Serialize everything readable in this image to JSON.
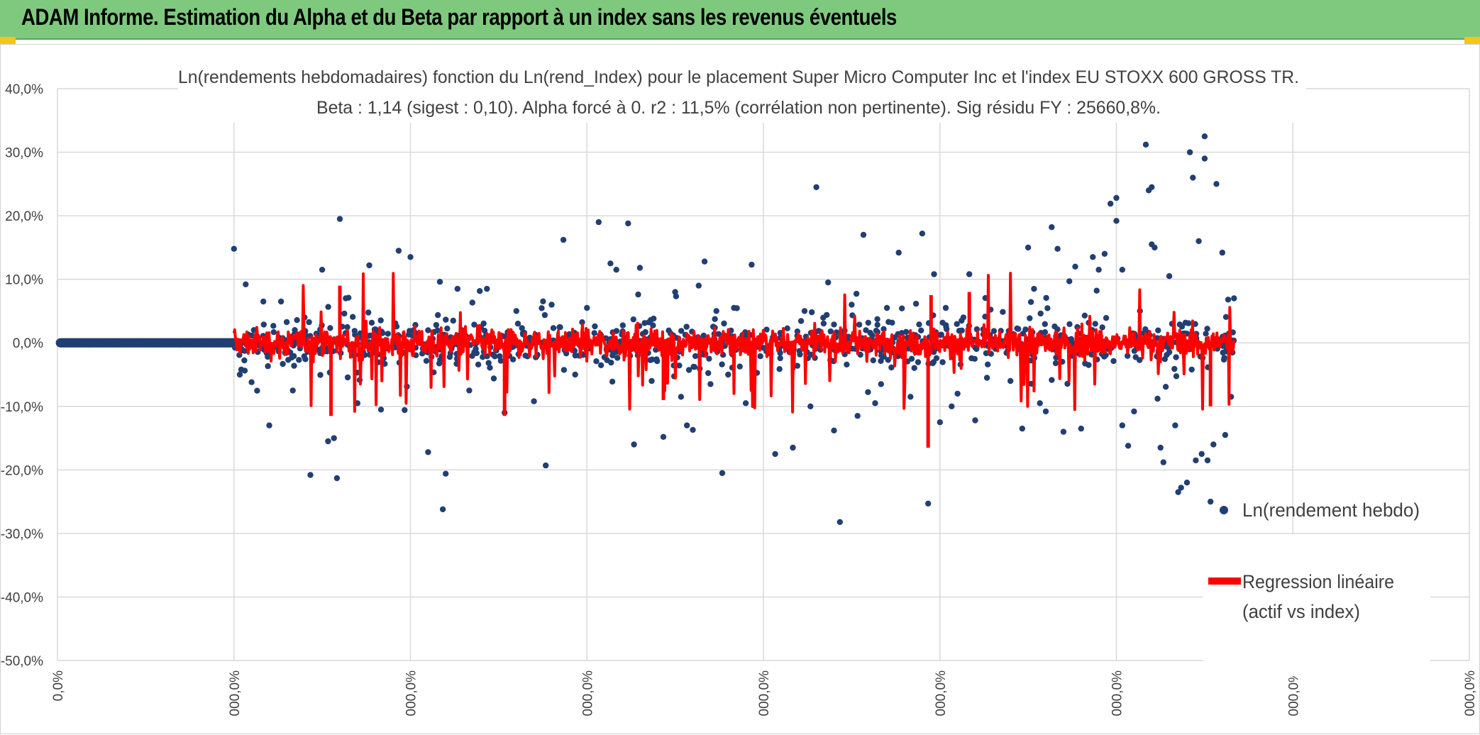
{
  "header": {
    "title": "ADAM Informe. Estimation du Alpha et du Beta par rapport à un index sans les revenus éventuels",
    "colors": {
      "banner": "#7fc97f",
      "corner": "#f5c518"
    }
  },
  "chart_data": {
    "type": "scatter",
    "title": "Ln(rendements hebdomadaires) fonction du Ln(rend_Index) pour le placement Super Micro Computer Inc et l'index EU STOXX 600 GROSS TR.",
    "subtitle": "Beta : 1,14 (sigest : 0,10). Alpha forcé à 0. r2 : 11,5% (corrélation non pertinente). Sig résidu FY : 25660,8%.",
    "ylim": [
      -50,
      40
    ],
    "y_tick_labels": [
      "40,0%",
      "30,0%",
      "20,0%",
      "10,0%",
      "0,0%",
      "-10,0%",
      "-20,0%",
      "-30,0%",
      "-40,0%",
      "-50,0%"
    ],
    "x_tick_labels": [
      "0,0%",
      "000,0%",
      "000,0%",
      "000,0%",
      "000,0%",
      "000,0%",
      "000,0%",
      "000,0%",
      "000,0%"
    ],
    "legend": {
      "position": "bottom-right",
      "scatter_label": "Ln(rendement hebdo)",
      "regression_label_line1": "Regression linéaire",
      "regression_label_line2": "(actif vs index)"
    },
    "colors": {
      "points": "#213f72",
      "regression": "#ff0000",
      "grid": "#d9d9d9"
    },
    "series": [
      {
        "name": "Ln(rendement hebdo)",
        "points": [
          [
            3.0,
            14.8
          ],
          [
            3.1,
            -5.0
          ],
          [
            3.2,
            9.2
          ],
          [
            3.3,
            -6.2
          ],
          [
            3.5,
            6.5
          ],
          [
            3.6,
            -13.0
          ],
          [
            3.8,
            6.5
          ],
          [
            4.0,
            -7.5
          ],
          [
            4.2,
            4.0
          ],
          [
            4.3,
            -20.8
          ],
          [
            4.5,
            11.5
          ],
          [
            4.6,
            -15.5
          ],
          [
            4.7,
            -15.0
          ],
          [
            4.75,
            -21.3
          ],
          [
            4.8,
            19.5
          ],
          [
            4.9,
            7.0
          ],
          [
            5.1,
            -9.5
          ],
          [
            5.3,
            12.2
          ],
          [
            5.5,
            -10.5
          ],
          [
            5.8,
            14.5
          ],
          [
            6.0,
            13.5
          ],
          [
            6.3,
            -17.2
          ],
          [
            6.5,
            9.6
          ],
          [
            6.55,
            -26.2
          ],
          [
            6.6,
            -20.6
          ],
          [
            6.8,
            8.5
          ],
          [
            7.0,
            -7.5
          ],
          [
            7.3,
            8.5
          ],
          [
            7.6,
            -11.0
          ],
          [
            7.8,
            5.0
          ],
          [
            8.1,
            -9.2
          ],
          [
            8.3,
            -19.3
          ],
          [
            8.4,
            6.0
          ],
          [
            8.6,
            16.2
          ],
          [
            8.8,
            -5.0
          ],
          [
            9.0,
            5.5
          ],
          [
            9.2,
            19.0
          ],
          [
            9.4,
            12.5
          ],
          [
            9.5,
            11.5
          ],
          [
            9.7,
            18.8
          ],
          [
            9.8,
            -16.0
          ],
          [
            9.9,
            11.8
          ],
          [
            10.1,
            -6.0
          ],
          [
            10.3,
            -14.8
          ],
          [
            10.5,
            8.0
          ],
          [
            10.6,
            -8.5
          ],
          [
            10.7,
            -13.0
          ],
          [
            10.8,
            -13.7
          ],
          [
            10.9,
            9.0
          ],
          [
            11.0,
            12.8
          ],
          [
            11.1,
            -6.5
          ],
          [
            11.2,
            5.0
          ],
          [
            11.3,
            -20.5
          ],
          [
            11.5,
            5.5
          ],
          [
            11.7,
            -9.5
          ],
          [
            11.8,
            12.3
          ],
          [
            12.2,
            -17.5
          ],
          [
            12.5,
            -16.5
          ],
          [
            12.7,
            5.0
          ],
          [
            12.9,
            24.5
          ],
          [
            13.1,
            9.5
          ],
          [
            13.2,
            -13.8
          ],
          [
            13.3,
            -28.2
          ],
          [
            13.5,
            6.0
          ],
          [
            13.6,
            -11.5
          ],
          [
            13.7,
            17.0
          ],
          [
            13.9,
            -9.5
          ],
          [
            14.1,
            5.5
          ],
          [
            14.3,
            14.2
          ],
          [
            14.5,
            -8.5
          ],
          [
            14.7,
            17.2
          ],
          [
            14.8,
            -25.3
          ],
          [
            14.9,
            10.8
          ],
          [
            15.0,
            -12.5
          ],
          [
            15.1,
            5.5
          ],
          [
            15.2,
            -10.0
          ],
          [
            15.3,
            -8.0
          ],
          [
            15.5,
            10.8
          ],
          [
            15.6,
            -12.2
          ],
          [
            15.8,
            -5.5
          ],
          [
            16.2,
            -6.0
          ],
          [
            16.5,
            15.0
          ],
          [
            16.6,
            8.5
          ],
          [
            16.7,
            -9.5
          ],
          [
            16.8,
            -10.8
          ],
          [
            16.9,
            18.2
          ],
          [
            17.0,
            14.8
          ],
          [
            17.1,
            -14.0
          ],
          [
            17.2,
            9.7
          ],
          [
            17.3,
            12.0
          ],
          [
            17.4,
            -13.5
          ],
          [
            17.6,
            13.5
          ],
          [
            17.7,
            11.5
          ],
          [
            17.8,
            14.0
          ],
          [
            17.9,
            21.9
          ],
          [
            18.0,
            19.2
          ],
          [
            18.0,
            22.8
          ],
          [
            18.1,
            11.5
          ],
          [
            18.2,
            -16.2
          ],
          [
            18.3,
            -10.8
          ],
          [
            18.4,
            5.0
          ],
          [
            18.5,
            31.2
          ],
          [
            18.55,
            24.0
          ],
          [
            18.6,
            24.5
          ],
          [
            18.6,
            15.5
          ],
          [
            18.65,
            15.0
          ],
          [
            18.7,
            -8.8
          ],
          [
            18.75,
            -16.5
          ],
          [
            18.8,
            -18.8
          ],
          [
            18.9,
            10.5
          ],
          [
            19.0,
            -13.0
          ],
          [
            19.05,
            -23.5
          ],
          [
            19.1,
            -22.8
          ],
          [
            19.2,
            -22.0
          ],
          [
            19.25,
            30.0
          ],
          [
            19.3,
            26.0
          ],
          [
            19.35,
            -18.5
          ],
          [
            19.4,
            16.0
          ],
          [
            19.45,
            -17.5
          ],
          [
            19.5,
            32.5
          ],
          [
            19.5,
            29.0
          ],
          [
            19.55,
            -18.5
          ],
          [
            19.6,
            -25.0
          ],
          [
            19.65,
            -16.0
          ],
          [
            19.7,
            25.0
          ],
          [
            19.8,
            14.2
          ],
          [
            19.85,
            -14.5
          ],
          [
            19.9,
            6.8
          ],
          [
            19.95,
            -8.5
          ],
          [
            20.0,
            7.0
          ],
          [
            18.1,
            -13.0
          ],
          [
            16.4,
            -13.5
          ],
          [
            12.8,
            -10.0
          ],
          [
            11.4,
            -5.0
          ],
          [
            14.0,
            -6.5
          ],
          [
            15.4,
            4.0
          ]
        ]
      }
    ]
  }
}
